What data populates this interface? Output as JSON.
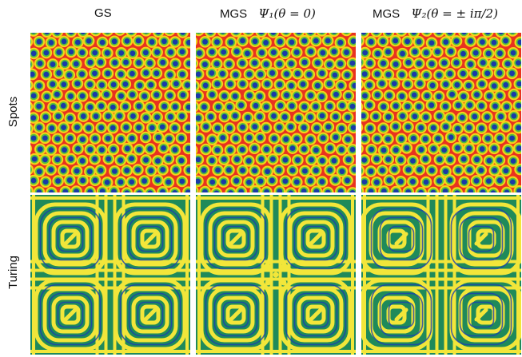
{
  "columns": [
    {
      "name": "GS",
      "formula": ""
    },
    {
      "name": "MGS",
      "formula": "Ψ₁(θ = 0)"
    },
    {
      "name": "MGS",
      "formula": "Ψ₂(θ = ± iπ/2)"
    }
  ],
  "rows": [
    {
      "label": "Spots"
    },
    {
      "label": "Turing"
    }
  ],
  "colors": {
    "background_spots": "#e8321f",
    "ring_outer": "#f5d21a",
    "ring_mid": "#56c23a",
    "core": "#1a3aa8",
    "turing_base": "#1f8a5a",
    "turing_stripe": "#f2e63a",
    "turing_core": "#1c3fb0"
  }
}
